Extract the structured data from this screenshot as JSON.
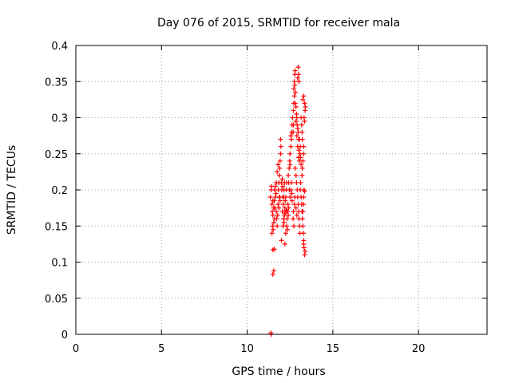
{
  "chart_data": {
    "type": "scatter",
    "title": "Day 076 of 2015, SRMTID for receiver mala",
    "xlabel": "GPS time / hours",
    "ylabel": "SRMTID / TECUs",
    "xlim": [
      0,
      24
    ],
    "ylim": [
      0,
      0.4
    ],
    "xticks": [
      0,
      5,
      10,
      15,
      20
    ],
    "xtick_labels": [
      "0",
      "5",
      "10",
      "15",
      "20"
    ],
    "yticks": [
      0,
      0.05,
      0.1,
      0.15,
      0.2,
      0.25,
      0.3,
      0.35,
      0.4
    ],
    "ytick_labels": [
      "0",
      "0.05",
      "0.1",
      "0.15",
      "0.2",
      "0.25",
      "0.3",
      "0.35",
      "0.4"
    ],
    "grid": true,
    "marker": "plus",
    "color": "#ff0000",
    "series": [
      {
        "name": "SRMTID",
        "points": [
          [
            11.4,
            0.0
          ],
          [
            11.38,
            0.002
          ],
          [
            11.5,
            0.083
          ],
          [
            11.55,
            0.088
          ],
          [
            11.5,
            0.117
          ],
          [
            11.58,
            0.118
          ],
          [
            11.35,
            0.19
          ],
          [
            11.4,
            0.2
          ],
          [
            11.42,
            0.205
          ],
          [
            11.45,
            0.18
          ],
          [
            11.47,
            0.17
          ],
          [
            11.5,
            0.165
          ],
          [
            11.48,
            0.15
          ],
          [
            11.52,
            0.145
          ],
          [
            11.45,
            0.14
          ],
          [
            11.55,
            0.155
          ],
          [
            11.6,
            0.16
          ],
          [
            11.62,
            0.175
          ],
          [
            11.58,
            0.185
          ],
          [
            11.65,
            0.19
          ],
          [
            11.6,
            0.2
          ],
          [
            11.68,
            0.195
          ],
          [
            11.7,
            0.17
          ],
          [
            11.72,
            0.16
          ],
          [
            11.75,
            0.15
          ],
          [
            11.78,
            0.165
          ],
          [
            11.8,
            0.18
          ],
          [
            11.82,
            0.2
          ],
          [
            11.85,
            0.21
          ],
          [
            11.88,
            0.22
          ],
          [
            11.9,
            0.23
          ],
          [
            11.92,
            0.24
          ],
          [
            11.95,
            0.25
          ],
          [
            11.97,
            0.26
          ],
          [
            11.95,
            0.27
          ],
          [
            11.9,
            0.19
          ],
          [
            11.92,
            0.185
          ],
          [
            11.85,
            0.175
          ],
          [
            11.88,
            0.19
          ],
          [
            12.0,
            0.21
          ],
          [
            12.02,
            0.2
          ],
          [
            12.05,
            0.215
          ],
          [
            12.08,
            0.19
          ],
          [
            12.1,
            0.18
          ],
          [
            12.05,
            0.17
          ],
          [
            12.12,
            0.16
          ],
          [
            12.15,
            0.155
          ],
          [
            12.18,
            0.165
          ],
          [
            12.2,
            0.175
          ],
          [
            12.22,
            0.185
          ],
          [
            12.25,
            0.19
          ],
          [
            12.28,
            0.2
          ],
          [
            12.3,
            0.21
          ],
          [
            12.0,
            0.13
          ],
          [
            12.2,
            0.125
          ],
          [
            12.25,
            0.14
          ],
          [
            12.3,
            0.15
          ],
          [
            12.35,
            0.145
          ],
          [
            12.1,
            0.15
          ],
          [
            12.32,
            0.16
          ],
          [
            12.35,
            0.17
          ],
          [
            12.38,
            0.18
          ],
          [
            12.4,
            0.165
          ],
          [
            12.42,
            0.175
          ],
          [
            12.4,
            0.22
          ],
          [
            12.45,
            0.23
          ],
          [
            12.48,
            0.24
          ],
          [
            12.5,
            0.235
          ],
          [
            12.42,
            0.21
          ],
          [
            12.46,
            0.2
          ],
          [
            12.5,
            0.19
          ],
          [
            12.55,
            0.2
          ],
          [
            12.58,
            0.21
          ],
          [
            12.6,
            0.195
          ],
          [
            12.62,
            0.185
          ],
          [
            12.5,
            0.25
          ],
          [
            12.55,
            0.26
          ],
          [
            12.58,
            0.27
          ],
          [
            12.6,
            0.28
          ],
          [
            12.62,
            0.29
          ],
          [
            12.65,
            0.3
          ],
          [
            12.55,
            0.275
          ],
          [
            12.68,
            0.28
          ],
          [
            12.7,
            0.29
          ],
          [
            12.7,
            0.31
          ],
          [
            12.72,
            0.32
          ],
          [
            12.75,
            0.33
          ],
          [
            12.72,
            0.34
          ],
          [
            12.75,
            0.35
          ],
          [
            12.78,
            0.36
          ],
          [
            12.8,
            0.365
          ],
          [
            12.78,
            0.345
          ],
          [
            12.82,
            0.335
          ],
          [
            12.8,
            0.32
          ],
          [
            12.85,
            0.315
          ],
          [
            12.88,
            0.305
          ],
          [
            12.9,
            0.3
          ],
          [
            12.85,
            0.295
          ],
          [
            12.92,
            0.29
          ],
          [
            12.95,
            0.285
          ],
          [
            12.98,
            0.28
          ],
          [
            12.9,
            0.275
          ],
          [
            13.0,
            0.27
          ],
          [
            12.95,
            0.26
          ],
          [
            13.02,
            0.255
          ],
          [
            13.0,
            0.245
          ],
          [
            13.05,
            0.24
          ],
          [
            13.08,
            0.25
          ],
          [
            13.1,
            0.26
          ],
          [
            13.05,
            0.27
          ],
          [
            12.95,
            0.355
          ],
          [
            12.98,
            0.37
          ],
          [
            13.0,
            0.36
          ],
          [
            13.02,
            0.35
          ],
          [
            12.8,
            0.23
          ],
          [
            12.85,
            0.22
          ],
          [
            12.88,
            0.21
          ],
          [
            12.92,
            0.2
          ],
          [
            12.95,
            0.19
          ],
          [
            12.98,
            0.18
          ],
          [
            13.0,
            0.17
          ],
          [
            13.02,
            0.16
          ],
          [
            13.05,
            0.15
          ],
          [
            13.08,
            0.14
          ],
          [
            12.9,
            0.165
          ],
          [
            12.85,
            0.175
          ],
          [
            12.7,
            0.17
          ],
          [
            12.68,
            0.16
          ],
          [
            12.72,
            0.15
          ],
          [
            12.75,
            0.18
          ],
          [
            12.78,
            0.19
          ],
          [
            13.1,
            0.2
          ],
          [
            13.12,
            0.21
          ],
          [
            13.15,
            0.19
          ],
          [
            13.18,
            0.18
          ],
          [
            13.2,
            0.17
          ],
          [
            13.22,
            0.16
          ],
          [
            13.25,
            0.15
          ],
          [
            13.28,
            0.14
          ],
          [
            13.3,
            0.13
          ],
          [
            13.32,
            0.12
          ],
          [
            13.35,
            0.11
          ],
          [
            13.38,
            0.115
          ],
          [
            13.3,
            0.125
          ],
          [
            13.25,
            0.17
          ],
          [
            13.28,
            0.18
          ],
          [
            13.3,
            0.19
          ],
          [
            13.32,
            0.2
          ],
          [
            13.35,
            0.198
          ],
          [
            13.2,
            0.22
          ],
          [
            13.22,
            0.23
          ],
          [
            13.25,
            0.24
          ],
          [
            13.28,
            0.25
          ],
          [
            13.3,
            0.26
          ],
          [
            13.32,
            0.3
          ],
          [
            13.35,
            0.295
          ],
          [
            13.38,
            0.31
          ],
          [
            13.4,
            0.315
          ],
          [
            13.35,
            0.32
          ],
          [
            13.3,
            0.33
          ],
          [
            13.25,
            0.325
          ],
          [
            13.15,
            0.3
          ],
          [
            13.18,
            0.29
          ],
          [
            13.2,
            0.28
          ],
          [
            13.22,
            0.27
          ],
          [
            13.12,
            0.245
          ],
          [
            13.15,
            0.235
          ],
          [
            11.7,
            0.21
          ],
          [
            11.75,
            0.225
          ],
          [
            11.8,
            0.235
          ],
          [
            11.65,
            0.205
          ],
          [
            11.55,
            0.175
          ],
          [
            11.5,
            0.185
          ],
          [
            12.15,
            0.2
          ],
          [
            12.18,
            0.21
          ],
          [
            12.12,
            0.19
          ],
          [
            12.08,
            0.205
          ],
          [
            12.22,
            0.168
          ],
          [
            12.28,
            0.172
          ]
        ]
      }
    ]
  }
}
